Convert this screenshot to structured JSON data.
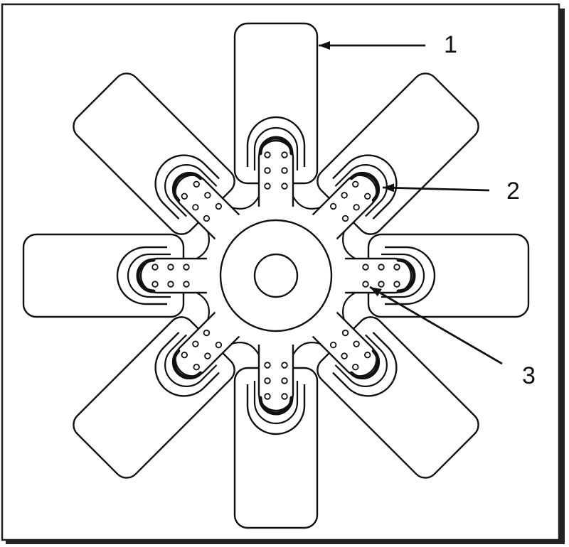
{
  "figure": {
    "description_type": "engine-cooling-fan-line-drawing",
    "blade_count": 8,
    "rivets_per_blade": 6,
    "callouts": [
      {
        "id": "blade",
        "label": "1"
      },
      {
        "id": "blade-root-clamp",
        "label": "2"
      },
      {
        "id": "rivet",
        "label": "3"
      }
    ],
    "colors": {
      "line": "#111111",
      "fill": "#ffffff"
    }
  }
}
